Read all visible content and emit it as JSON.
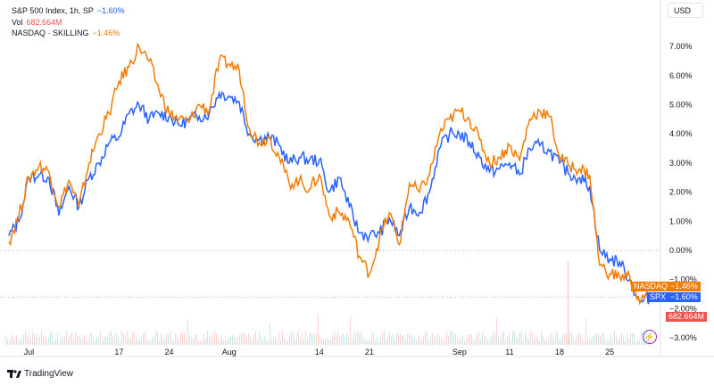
{
  "legend": {
    "spx_title": "S&P 500 Index, 1h, SP",
    "spx_change": "−1.60%",
    "vol_label": "Vol",
    "vol_value": "682.664M",
    "ndq_title": "NASDAQ · SKILLING",
    "ndq_change": "−1.46%"
  },
  "currency_button": "USD",
  "tags": {
    "ndq_name": "NASDAQ",
    "ndq_value": "−1.46%",
    "spx_name": "SPX",
    "spx_value": "−1.60%",
    "vol_value": "682.664M"
  },
  "logo_text": "TradingView",
  "colors": {
    "spx": "#2962ff",
    "ndq": "#f57c00",
    "vol_tag": "#ef5350",
    "lightning": "#9c27b0"
  },
  "icons": {
    "lightning": "lightning-icon",
    "logo": "tradingview-logo"
  },
  "chart_data": {
    "type": "line",
    "ylim": [
      -3.3,
      8
    ],
    "y_ticks": [
      "7.00%",
      "6.00%",
      "5.00%",
      "4.00%",
      "3.00%",
      "2.00%",
      "1.00%",
      "0.00%",
      "−1.00%",
      "−2.00%",
      "−3.00%"
    ],
    "y_tick_values": [
      7,
      6,
      5,
      4,
      3,
      2,
      1,
      0,
      -1,
      -2,
      -3
    ],
    "x_ticks": [
      {
        "date": "2023-07-03",
        "label": "Jul"
      },
      {
        "date": "2023-07-17",
        "label": "17"
      },
      {
        "date": "2023-07-24",
        "label": "24"
      },
      {
        "date": "2023-08-01",
        "label": "Aug"
      },
      {
        "date": "2023-08-14",
        "label": "14"
      },
      {
        "date": "2023-08-21",
        "label": "21"
      },
      {
        "date": "2023-09-01",
        "label": "Sep"
      },
      {
        "date": "2023-09-11",
        "label": "11"
      },
      {
        "date": "2023-09-18",
        "label": "18"
      },
      {
        "date": "2023-09-25",
        "label": "25"
      }
    ],
    "x": [
      "2023-06-29",
      "2023-06-30",
      "2023-07-03",
      "2023-07-05",
      "2023-07-06",
      "2023-07-07",
      "2023-07-10",
      "2023-07-11",
      "2023-07-12",
      "2023-07-13",
      "2023-07-14",
      "2023-07-17",
      "2023-07-18",
      "2023-07-19",
      "2023-07-20",
      "2023-07-21",
      "2023-07-24",
      "2023-07-25",
      "2023-07-26",
      "2023-07-27",
      "2023-07-28",
      "2023-07-31",
      "2023-08-01",
      "2023-08-02",
      "2023-08-03",
      "2023-08-04",
      "2023-08-07",
      "2023-08-08",
      "2023-08-09",
      "2023-08-10",
      "2023-08-11",
      "2023-08-14",
      "2023-08-15",
      "2023-08-16",
      "2023-08-17",
      "2023-08-18",
      "2023-08-21",
      "2023-08-22",
      "2023-08-23",
      "2023-08-24",
      "2023-08-25",
      "2023-08-28",
      "2023-08-29",
      "2023-08-30",
      "2023-08-31",
      "2023-09-01",
      "2023-09-05",
      "2023-09-06",
      "2023-09-07",
      "2023-09-08",
      "2023-09-11",
      "2023-09-12",
      "2023-09-13",
      "2023-09-14",
      "2023-09-15",
      "2023-09-18",
      "2023-09-19",
      "2023-09-20",
      "2023-09-21",
      "2023-09-22",
      "2023-09-25",
      "2023-09-26",
      "2023-09-27",
      "2023-09-28",
      "2023-09-29"
    ],
    "series": [
      {
        "name": "SPX",
        "color": "#2962ff",
        "values": [
          0.5,
          1.0,
          2.5,
          2.6,
          2.5,
          1.2,
          2.2,
          1.5,
          2.5,
          3.0,
          3.7,
          3.9,
          4.7,
          5.0,
          4.5,
          4.7,
          4.6,
          4.3,
          4.5,
          4.6,
          4.7,
          5.4,
          5.3,
          5.1,
          4.0,
          3.8,
          3.9,
          3.6,
          3.0,
          3.2,
          3.1,
          3.1,
          2.0,
          2.5,
          1.5,
          0.6,
          0.5,
          0.6,
          1.1,
          0.5,
          1.5,
          1.3,
          2.0,
          3.5,
          4.0,
          4.0,
          3.7,
          3.2,
          2.7,
          2.8,
          3.0,
          2.6,
          3.5,
          3.6,
          3.4,
          3.0,
          2.6,
          2.5,
          2.2,
          0.0,
          -0.3,
          -0.4,
          -1.0,
          -1.8,
          -1.6
        ]
      },
      {
        "name": "NASDAQ",
        "color": "#f57c00",
        "values": [
          0.3,
          1.2,
          2.5,
          2.9,
          2.7,
          1.5,
          2.4,
          1.5,
          3.0,
          4.0,
          4.7,
          5.8,
          6.3,
          7.0,
          6.5,
          5.5,
          4.7,
          4.5,
          4.4,
          5.0,
          4.8,
          6.5,
          6.4,
          6.2,
          4.2,
          3.7,
          3.9,
          3.2,
          2.3,
          2.4,
          2.1,
          2.6,
          1.2,
          1.3,
          1.0,
          -0.2,
          -0.8,
          0.4,
          1.3,
          0.2,
          2.3,
          2.0,
          2.6,
          4.0,
          4.5,
          4.8,
          4.5,
          3.8,
          3.0,
          3.2,
          3.6,
          3.1,
          4.5,
          4.8,
          4.6,
          3.2,
          2.9,
          2.8,
          2.6,
          -0.5,
          -0.8,
          -0.9,
          -0.9,
          -1.8,
          -1.46
        ]
      }
    ]
  }
}
